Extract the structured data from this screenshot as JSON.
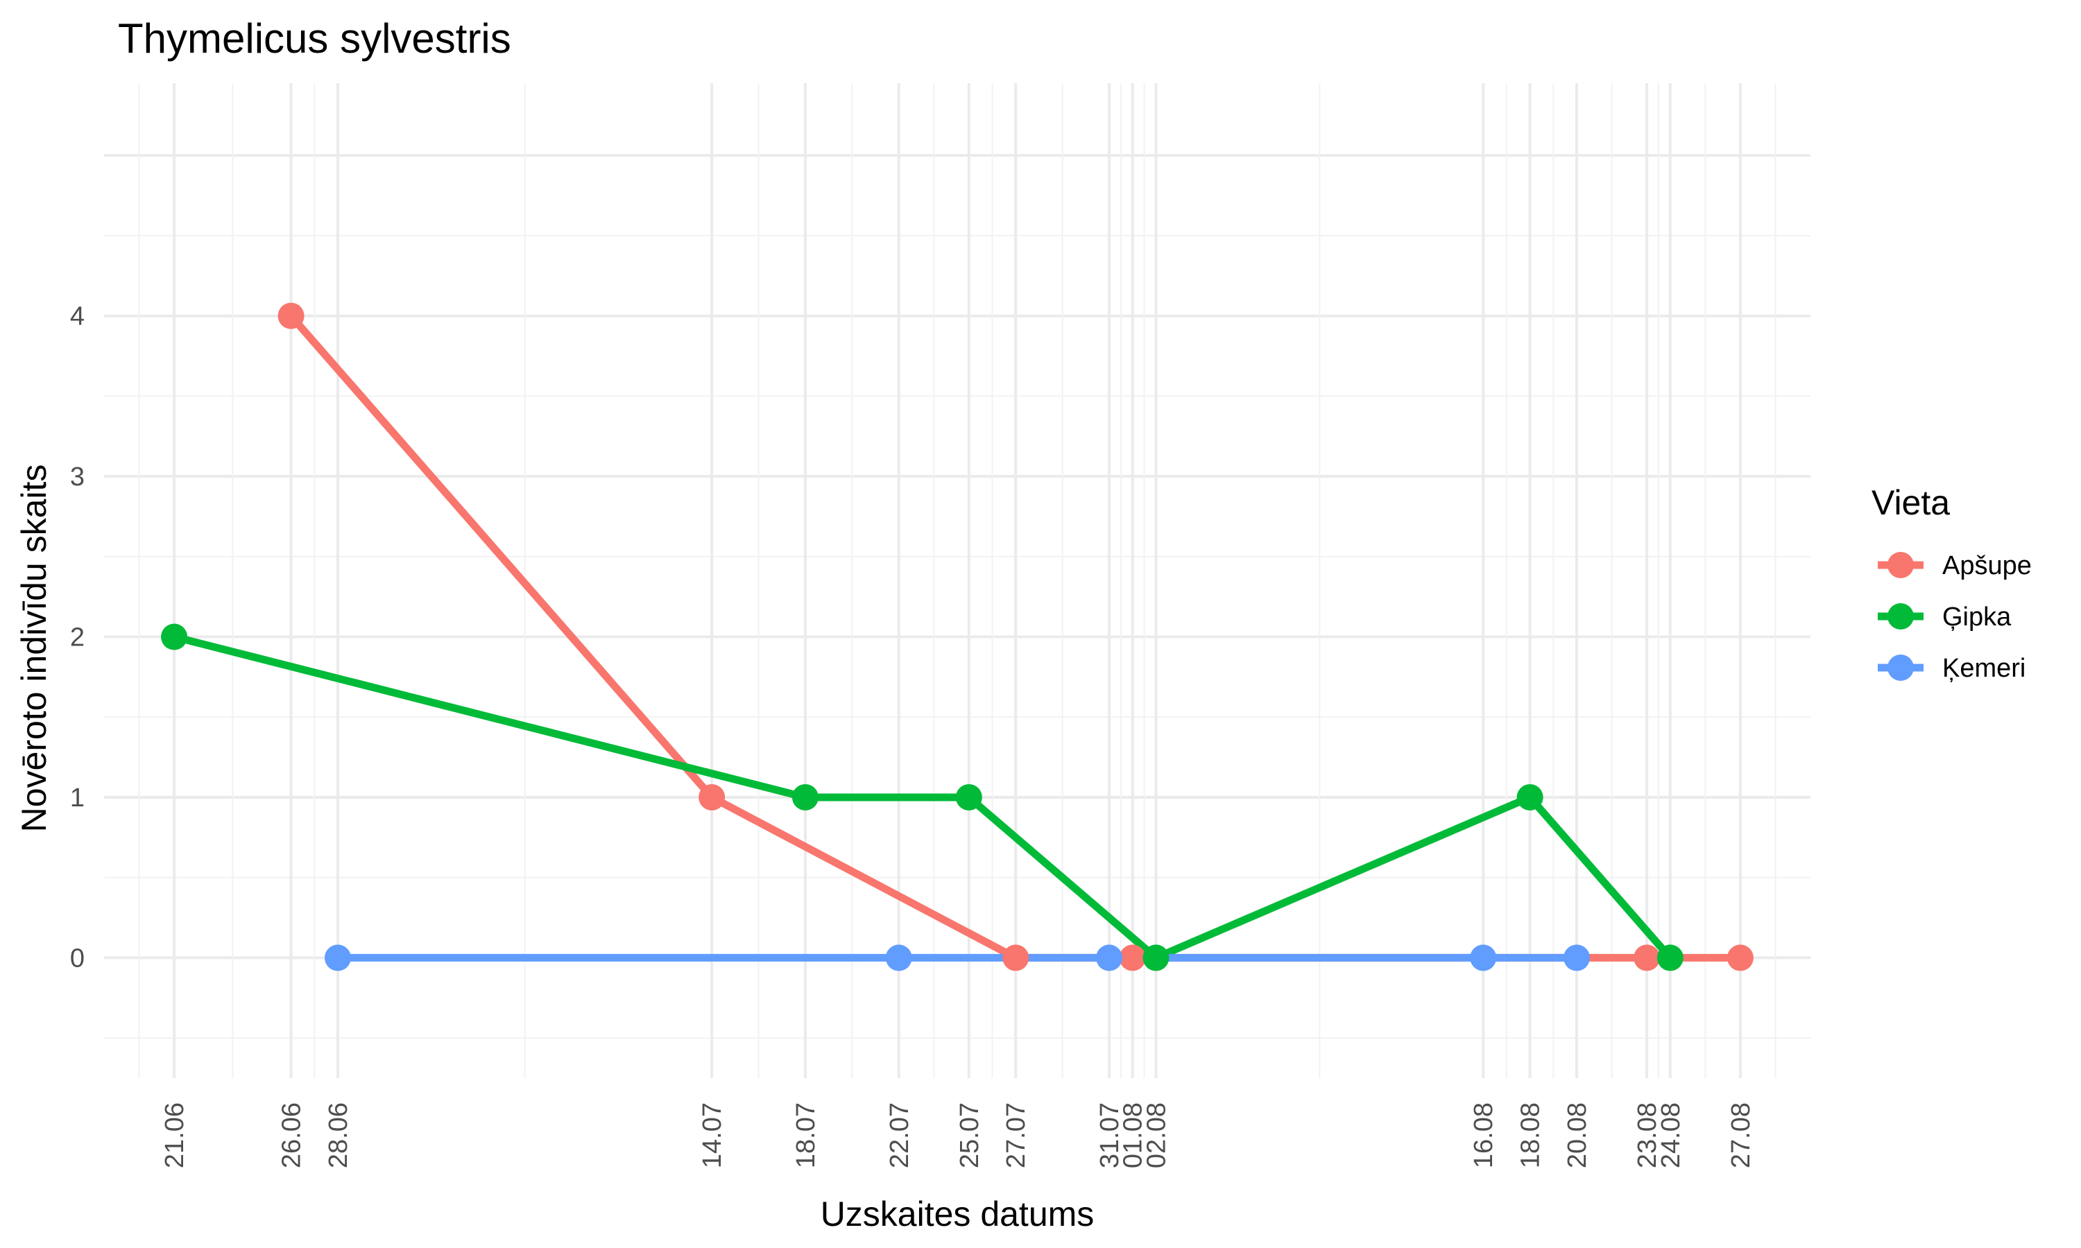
{
  "chart_data": {
    "type": "line",
    "title": "Thymelicus sylvestris",
    "xlabel": "Uzskaites datums",
    "ylabel": "Novēroto indivīdu skaits",
    "x_axis_type": "date",
    "xlim": [
      "2020-06-18",
      "2020-08-30"
    ],
    "ylim": [
      -0.75,
      5.45
    ],
    "y_ticks": [
      0,
      1,
      2,
      3,
      4
    ],
    "x_ticks": [
      {
        "date": "2020-06-21",
        "label": "21.06"
      },
      {
        "date": "2020-06-26",
        "label": "26.06"
      },
      {
        "date": "2020-06-28",
        "label": "28.06"
      },
      {
        "date": "2020-07-14",
        "label": "14.07"
      },
      {
        "date": "2020-07-18",
        "label": "18.07"
      },
      {
        "date": "2020-07-22",
        "label": "22.07"
      },
      {
        "date": "2020-07-25",
        "label": "25.07"
      },
      {
        "date": "2020-07-27",
        "label": "27.07"
      },
      {
        "date": "2020-07-31",
        "label": "31.07"
      },
      {
        "date": "2020-08-01",
        "label": "01.08"
      },
      {
        "date": "2020-08-02",
        "label": "02.08"
      },
      {
        "date": "2020-08-16",
        "label": "16.08"
      },
      {
        "date": "2020-08-18",
        "label": "18.08"
      },
      {
        "date": "2020-08-20",
        "label": "20.08"
      },
      {
        "date": "2020-08-23",
        "label": "23.08"
      },
      {
        "date": "2020-08-24",
        "label": "24.08"
      },
      {
        "date": "2020-08-27",
        "label": "27.08"
      }
    ],
    "grid": true,
    "legend": {
      "title": "Vieta",
      "position": "right"
    },
    "series": [
      {
        "name": "Apšupe",
        "color": "#F8766D",
        "points": [
          {
            "x": "2020-06-26",
            "y": 4
          },
          {
            "x": "2020-07-14",
            "y": 1
          },
          {
            "x": "2020-07-27",
            "y": 0
          },
          {
            "x": "2020-08-01",
            "y": 0
          },
          {
            "x": "2020-08-23",
            "y": 0
          },
          {
            "x": "2020-08-27",
            "y": 0
          }
        ]
      },
      {
        "name": "Ģipka",
        "color": "#00BA38",
        "points": [
          {
            "x": "2020-06-21",
            "y": 2
          },
          {
            "x": "2020-07-18",
            "y": 1
          },
          {
            "x": "2020-07-25",
            "y": 1
          },
          {
            "x": "2020-08-02",
            "y": 0
          },
          {
            "x": "2020-08-18",
            "y": 1
          },
          {
            "x": "2020-08-24",
            "y": 0
          }
        ]
      },
      {
        "name": "Ķemeri",
        "color": "#619CFF",
        "points": [
          {
            "x": "2020-06-28",
            "y": 0
          },
          {
            "x": "2020-07-22",
            "y": 0
          },
          {
            "x": "2020-07-31",
            "y": 0
          },
          {
            "x": "2020-08-16",
            "y": 0
          },
          {
            "x": "2020-08-20",
            "y": 0
          }
        ]
      }
    ]
  }
}
